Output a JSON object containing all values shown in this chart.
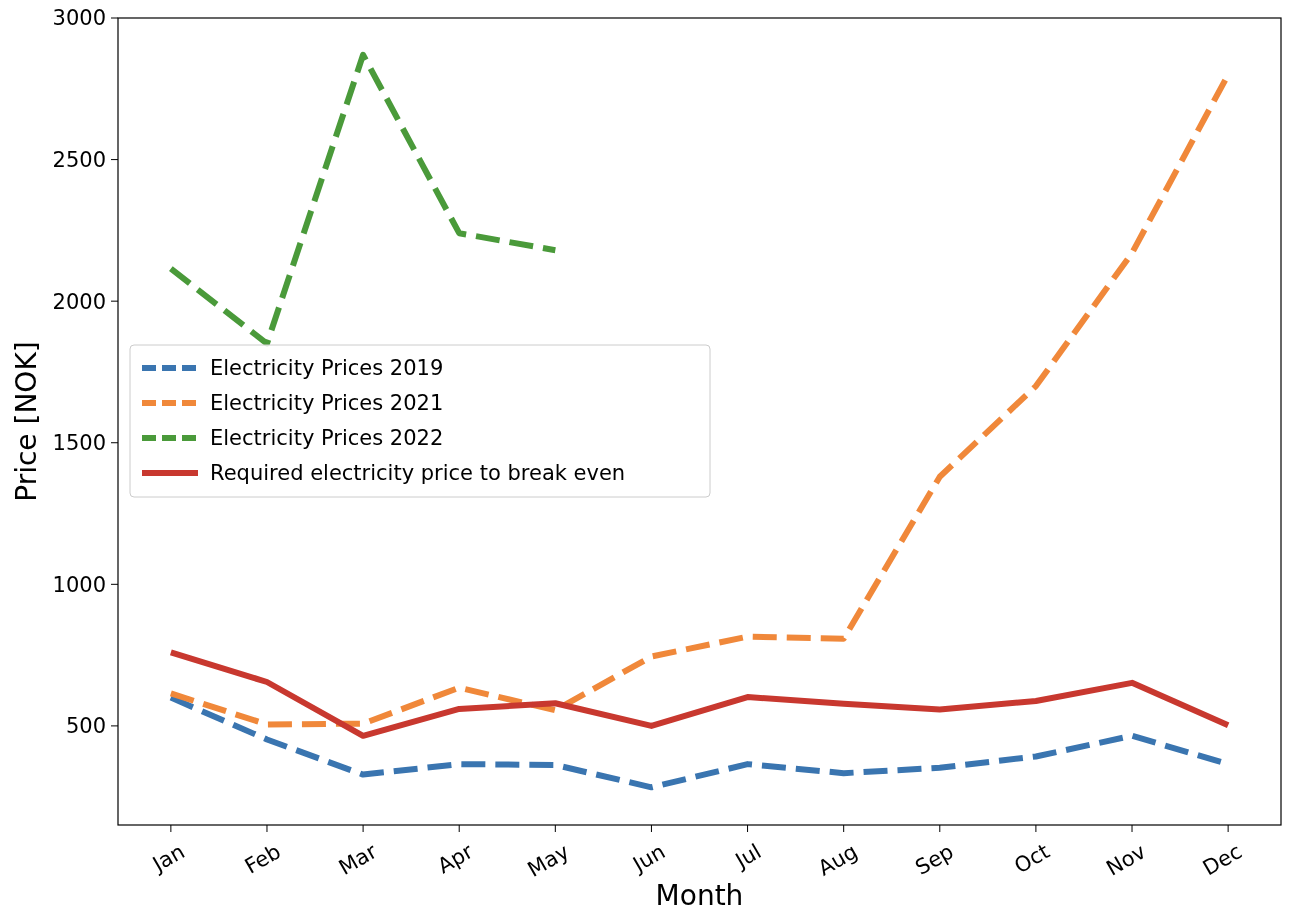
{
  "chart_data": {
    "type": "line",
    "xlabel": "Month",
    "ylabel": "Price [NOK]",
    "categories": [
      "Jan",
      "Feb",
      "Mar",
      "Apr",
      "May",
      "Jun",
      "Jul",
      "Aug",
      "Sep",
      "Oct",
      "Nov",
      "Dec"
    ],
    "series": [
      {
        "name": "Electricity Prices 2019",
        "color": "#3a75b0",
        "line_style": "dashed",
        "values": [
          600,
          452,
          328,
          365,
          362,
          283,
          365,
          333,
          352,
          392,
          465,
          365
        ]
      },
      {
        "name": "Electricity Prices 2021",
        "color": "#f0883a",
        "line_style": "dashed",
        "values": [
          615,
          505,
          508,
          635,
          555,
          745,
          815,
          808,
          1380,
          1700,
          2170,
          2800
        ]
      },
      {
        "name": "Electricity Prices 2022",
        "color": "#4a9a3a",
        "line_style": "dashed",
        "values": [
          2115,
          1850,
          2870,
          2240,
          2180,
          null,
          null,
          null,
          null,
          null,
          null,
          null
        ]
      },
      {
        "name": "Required electricity price to break even",
        "color": "#c8382f",
        "line_style": "solid",
        "values": [
          760,
          655,
          465,
          560,
          580,
          500,
          602,
          578,
          558,
          588,
          652,
          502
        ]
      }
    ],
    "ylim": [
      150,
      3000
    ],
    "yticks": [
      500,
      1000,
      1500,
      2000,
      2500,
      3000
    ],
    "legend": "center left",
    "grid": false
  }
}
